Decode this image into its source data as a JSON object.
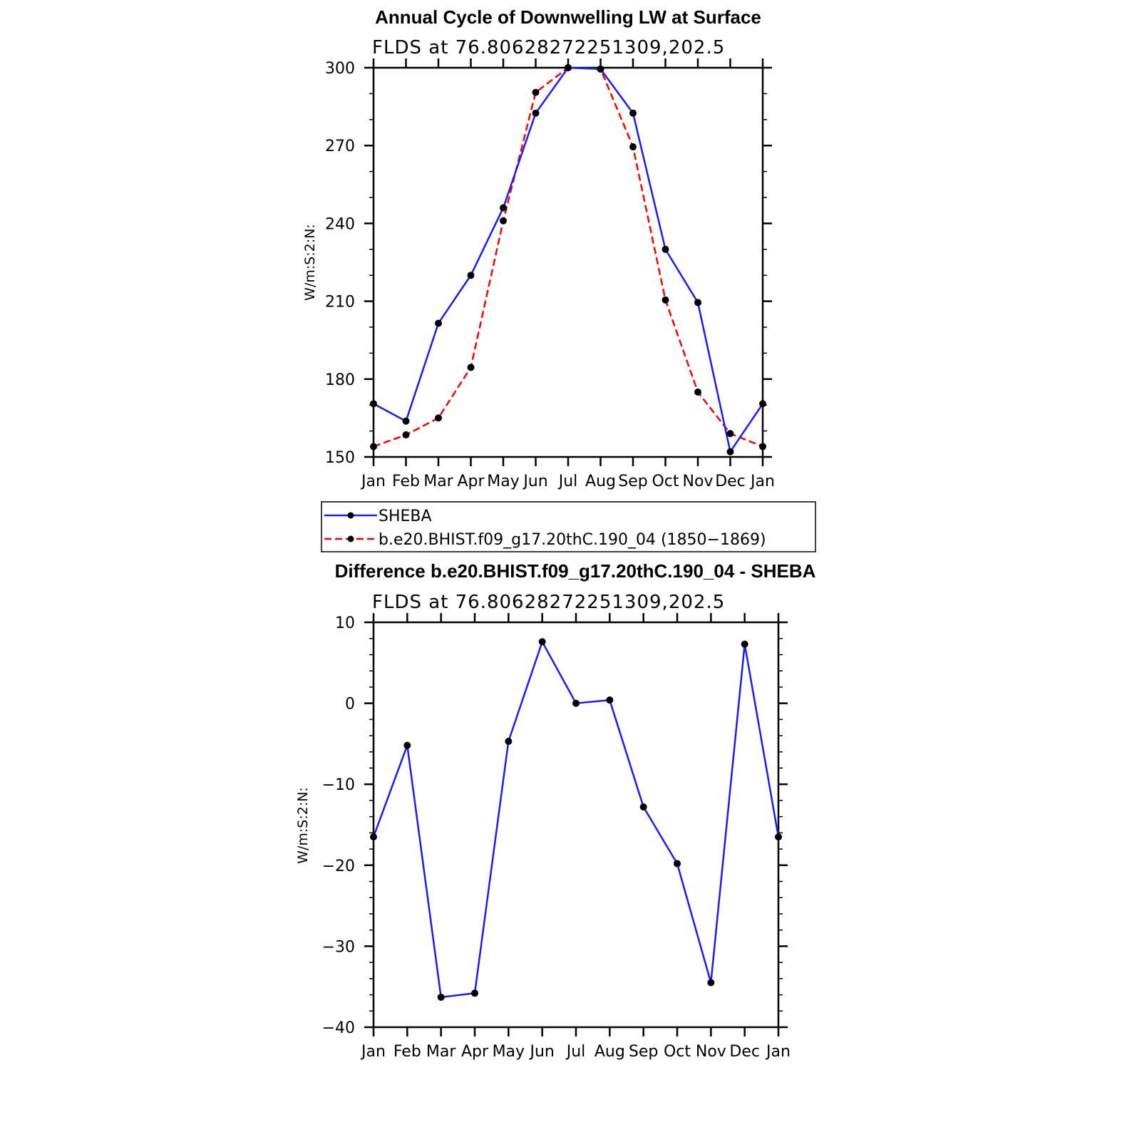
{
  "chart_data": [
    {
      "type": "line",
      "title": "Annual Cycle of Downwelling LW at Surface",
      "subtitle": "FLDS at 76.80628272251309,202.5",
      "ylabel": "W/m:S:2:N:",
      "ylim": [
        150,
        300
      ],
      "yticks": [
        150,
        180,
        210,
        240,
        270,
        300
      ],
      "yminor_step": 10,
      "categories": [
        "Jan",
        "Feb",
        "Mar",
        "Apr",
        "May",
        "Jun",
        "Jul",
        "Aug",
        "Sep",
        "Oct",
        "Nov",
        "Dec",
        "Jan"
      ],
      "grid": false,
      "legend_position": "below",
      "series": [
        {
          "name": "SHEBA",
          "color": "#1a1aff",
          "dash": "solid",
          "values": [
            170.5,
            163.8,
            201.5,
            220,
            246,
            282.5,
            300,
            299.5,
            282.5,
            230,
            209.5,
            152,
            170.5
          ]
        },
        {
          "name": "b.e20.BHIST.f09_g17.20thC.190_04 (1850−1869)",
          "color": "#ff0000",
          "dash": "dashed",
          "values": [
            154,
            158.5,
            165,
            184.5,
            241,
            290.5,
            300,
            299.5,
            269.5,
            210.5,
            175,
            159,
            154
          ]
        }
      ]
    },
    {
      "type": "line",
      "title": "Difference b.e20.BHIST.f09_g17.20thC.190_04 - SHEBA",
      "subtitle": "FLDS at 76.80628272251309,202.5",
      "ylabel": "W/m:S:2:N:",
      "ylim": [
        -40,
        10
      ],
      "yticks": [
        -40,
        -30,
        -20,
        -10,
        0,
        10
      ],
      "yticklabels": [
        "−40",
        "−30",
        "−20",
        "−10",
        "0",
        "10"
      ],
      "yminor_step": 2,
      "categories": [
        "Jan",
        "Feb",
        "Mar",
        "Apr",
        "May",
        "Jun",
        "Jul",
        "Aug",
        "Sep",
        "Oct",
        "Nov",
        "Dec",
        "Jan"
      ],
      "grid": false,
      "series": [
        {
          "name": "",
          "color": "#1a1aff",
          "dash": "solid",
          "values": [
            -16.5,
            -5.2,
            -36.3,
            -35.8,
            -4.7,
            7.6,
            0,
            0.4,
            -12.8,
            -19.8,
            -34.5,
            7.3,
            -16.5
          ]
        }
      ]
    }
  ]
}
